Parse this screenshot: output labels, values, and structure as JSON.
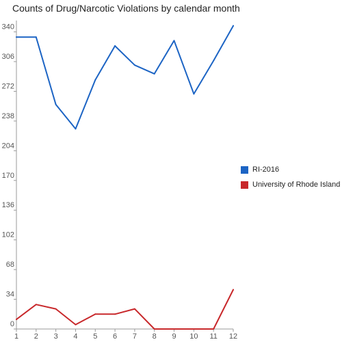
{
  "chart_data": {
    "type": "line",
    "title": "Counts of Drug/Narcotic Violations by calendar month",
    "x": [
      1,
      2,
      3,
      4,
      5,
      6,
      7,
      8,
      9,
      10,
      11,
      12
    ],
    "x_ticks": [
      "1",
      "2",
      "3",
      "4",
      "5",
      "6",
      "7",
      "8",
      "9",
      "10",
      "11",
      "12"
    ],
    "y_ticks": [
      "0",
      "34",
      "68",
      "102",
      "136",
      "170",
      "204",
      "238",
      "272",
      "306",
      "340"
    ],
    "ylim": [
      0,
      353
    ],
    "grid": false,
    "legend_position": "right",
    "series": [
      {
        "name": "RI-2016",
        "color": "#1c64c4",
        "values": [
          334,
          334,
          257,
          229,
          285,
          324,
          302,
          292,
          330,
          269,
          307,
          347
        ]
      },
      {
        "name": "University of Rhode Island",
        "color": "#c8282b",
        "values": [
          11,
          28,
          23,
          5,
          17,
          17,
          23,
          0,
          0,
          0,
          0,
          45
        ]
      }
    ]
  }
}
